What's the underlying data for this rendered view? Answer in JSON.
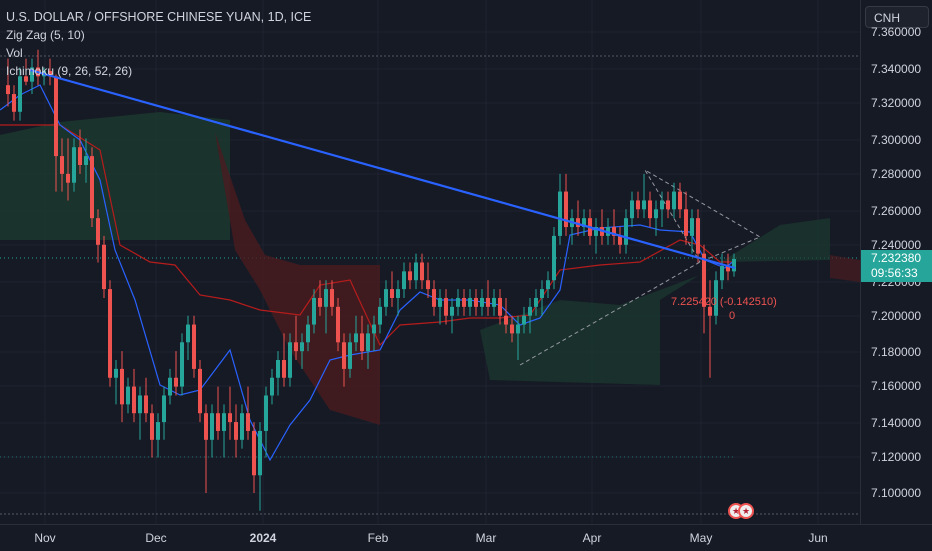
{
  "legend": {
    "title": "U.S. DOLLAR / OFFSHORE CHINESE YUAN, 1D, ICE",
    "indicators": [
      "Zig Zag (5, 10)",
      "Vol",
      "Ichimoku (9, 26, 52, 26)"
    ]
  },
  "symbol": "CNH",
  "price_axis": {
    "ticks": [
      "7.360000",
      "7.340000",
      "7.320000",
      "7.300000",
      "7.280000",
      "7.260000",
      "7.240000",
      "7.220000",
      "7.200000",
      "7.180000",
      "7.160000",
      "7.140000",
      "7.120000",
      "7.100000"
    ],
    "current_price": "7.232380",
    "countdown": "09:56:33"
  },
  "time_axis": {
    "labels": [
      "Nov",
      "Dec",
      "2024",
      "Feb",
      "Mar",
      "Apr",
      "May",
      "Jun"
    ]
  },
  "zigzag_note": {
    "change": "7.225420 (-0.142510)",
    "volume": "0"
  },
  "colors": {
    "background": "#161a25",
    "up": "#26a69a",
    "down": "#ef5350",
    "trendline": "#2962ff",
    "tenkan": "#2962ff",
    "kijun": "#b71c1c",
    "cloud_bull": "#1b3a2f",
    "cloud_bear": "#4a1c1f"
  },
  "event_icons": [
    "us-flag-icon",
    "us-flag-icon"
  ]
}
